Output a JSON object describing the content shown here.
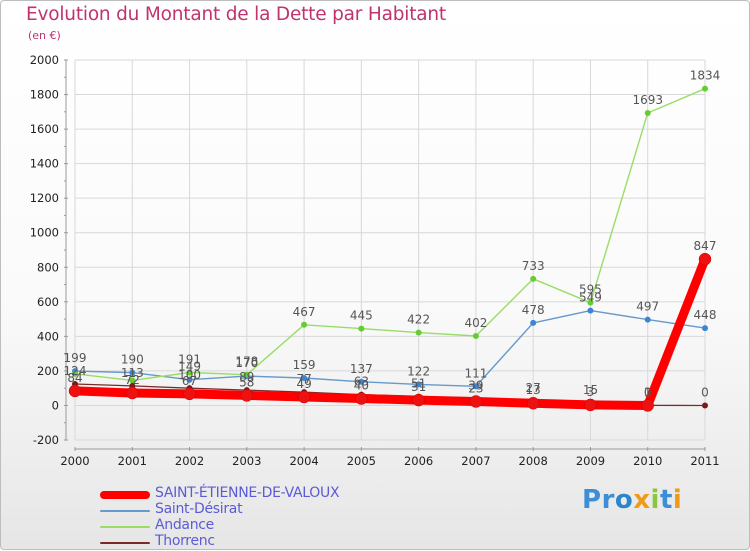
{
  "title": "Evolution du Montant de la Dette par Habitant",
  "subtitle": "(en €)",
  "colors": {
    "title": "#c0336f",
    "grid": "#d8d8d8",
    "axis": "#9a9a9a",
    "value_label": "#555555",
    "legend_text": "#5b5bd6"
  },
  "chart_data": {
    "type": "line",
    "title": "Evolution du Montant de la Dette par Habitant",
    "ylabel": "(en €)",
    "xlabel": "",
    "x": [
      "2000",
      "2001",
      "2002",
      "2003",
      "2004",
      "2005",
      "2006",
      "2007",
      "2008",
      "2009",
      "2010",
      "2011"
    ],
    "ylim": [
      -200,
      2000
    ],
    "yticks": [
      -200,
      0,
      200,
      400,
      600,
      800,
      1000,
      1200,
      1400,
      1600,
      1800,
      2000
    ],
    "grid": true,
    "legend_position": "bottom-left",
    "series": [
      {
        "name": "Saint-Désirat",
        "color": "#6699cc",
        "line_width": 1.4,
        "marker_color": "#3c85d6",
        "values": [
          199,
          190,
          149,
          170,
          159,
          137,
          122,
          111,
          478,
          549,
          497,
          448
        ],
        "labels": [
          "199",
          "190",
          "149",
          "170",
          "159",
          "137",
          "122",
          "111",
          "478",
          "549",
          "497",
          "448"
        ]
      },
      {
        "name": "Andance",
        "color": "#99dd66",
        "line_width": 1.4,
        "marker_color": "#66cc33",
        "values": [
          183,
          145,
          191,
          178,
          467,
          445,
          422,
          402,
          733,
          595,
          1693,
          1834
        ],
        "labels": [
          "",
          "",
          "191",
          "178",
          "467",
          "445",
          "422",
          "402",
          "733",
          "595",
          "1693",
          "1834"
        ]
      },
      {
        "name": "Thorrenc",
        "color": "#7a2a2a",
        "line_width": 1.3,
        "marker_color": "#7a1c1c",
        "values": [
          124,
          113,
          100,
          89,
          77,
          63,
          51,
          39,
          27,
          15,
          1,
          0
        ],
        "labels": [
          "124",
          "113",
          "100",
          "89",
          "77",
          "63",
          "51",
          "39",
          "27",
          "15",
          "1",
          "0"
        ]
      },
      {
        "name": "SAINT-ÉTIENNE-DE-VALOUX",
        "color": "#ff0000",
        "line_width": 9,
        "marker_color": "#ee1111",
        "values": [
          84,
          72,
          67,
          58,
          49,
          40,
          31,
          23,
          13,
          3,
          0,
          847
        ],
        "labels": [
          "84",
          "72",
          "67",
          "58",
          "49",
          "40",
          "31",
          "23",
          "13",
          "3",
          "0",
          "847"
        ]
      }
    ]
  },
  "legend": [
    {
      "label": "SAINT-ÉTIENNE-DE-VALOUX",
      "color": "#ff0000",
      "thickness": 8
    },
    {
      "label": "Saint-Désirat",
      "color": "#6699cc",
      "thickness": 2
    },
    {
      "label": "Andance",
      "color": "#99dd66",
      "thickness": 2
    },
    {
      "label": "Thorrenc",
      "color": "#7a2a2a",
      "thickness": 2
    }
  ],
  "logo": {
    "text": "Proxiti",
    "letter_colors": [
      "#3c8fd6",
      "#3c8fd6",
      "#2a86cc",
      "#f09a1a",
      "#8cc63f",
      "#3c8fd6",
      "#f09a1a"
    ]
  }
}
